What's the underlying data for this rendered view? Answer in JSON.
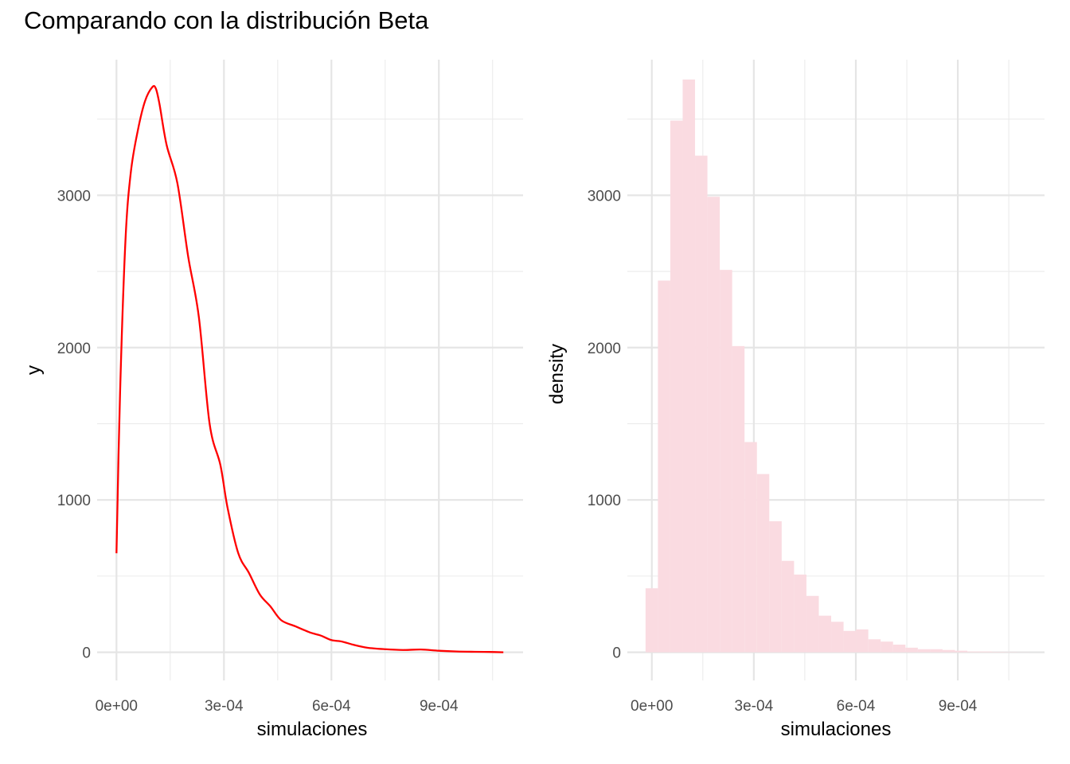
{
  "title": "Comparando con la distribución Beta",
  "chart_data": [
    {
      "type": "line",
      "xlabel": "simulaciones",
      "ylabel": "y",
      "xlim": [
        -5.4e-05,
        0.001135
      ],
      "ylim": [
        -185,
        3890
      ],
      "x_ticks": [
        0,
        0.0003,
        0.0006,
        0.0009
      ],
      "x_tick_labels": [
        "0e+00",
        "3e-04",
        "6e-04",
        "9e-04"
      ],
      "y_ticks": [
        0,
        1000,
        2000,
        3000
      ],
      "y_tick_labels": [
        "0",
        "1000",
        "2000",
        "3000"
      ],
      "grid": true,
      "line_color": "#ff0000",
      "x": [
        0.0,
        1e-05,
        2.5e-05,
        4e-05,
        6e-05,
        8e-05,
        0.0001,
        0.00011,
        0.00012,
        0.00014,
        0.00017,
        0.0002,
        0.00023,
        0.00026,
        0.00029,
        0.00031,
        0.00034,
        0.00037,
        0.0004,
        0.00043,
        0.00046,
        0.0005,
        0.00054,
        0.00057,
        0.0006,
        0.00063,
        0.00066,
        0.0007,
        0.00075,
        0.0008,
        0.00085,
        0.0009,
        0.00095,
        0.001,
        0.00104,
        0.00108
      ],
      "y": [
        650,
        1700,
        2700,
        3150,
        3430,
        3620,
        3710,
        3700,
        3600,
        3330,
        3080,
        2600,
        2200,
        1500,
        1230,
        950,
        650,
        520,
        380,
        300,
        210,
        170,
        130,
        110,
        80,
        70,
        50,
        30,
        20,
        15,
        18,
        10,
        5,
        3,
        2,
        0
      ]
    },
    {
      "type": "bar",
      "xlabel": "simulaciones",
      "ylabel": "density",
      "xlim": [
        -7.2e-05,
        0.001155
      ],
      "ylim": [
        -185,
        3890
      ],
      "x_ticks": [
        0,
        0.0003,
        0.0006,
        0.0009
      ],
      "x_tick_labels": [
        "0e+00",
        "3e-04",
        "6e-04",
        "9e-04"
      ],
      "y_ticks": [
        0,
        1000,
        2000,
        3000
      ],
      "y_tick_labels": [
        "0",
        "1000",
        "2000",
        "3000"
      ],
      "grid": true,
      "fill_color": "#fadbe1",
      "bin_width": 3.64e-05,
      "bin_centers": [
        -3e-07,
        3.61e-05,
        7.25e-05,
        0.0001089,
        0.0001453,
        0.0001817,
        0.0002181,
        0.0002545,
        0.0002909,
        0.0003273,
        0.0003637,
        0.0004001,
        0.0004365,
        0.0004729,
        0.0005093,
        0.0005457,
        0.0005821,
        0.0006185,
        0.0006549,
        0.0006913,
        0.0007277,
        0.0007641,
        0.0008005,
        0.0008369,
        0.0008733,
        0.0009097,
        0.0009461,
        0.0009825,
        0.0010189,
        0.0010553,
        0.0010917
      ],
      "values": [
        420,
        2440,
        3490,
        3760,
        3260,
        2990,
        2510,
        2010,
        1380,
        1170,
        860,
        600,
        510,
        370,
        240,
        200,
        140,
        150,
        85,
        70,
        50,
        30,
        20,
        20,
        15,
        10,
        5,
        5,
        3,
        2,
        1
      ]
    }
  ]
}
